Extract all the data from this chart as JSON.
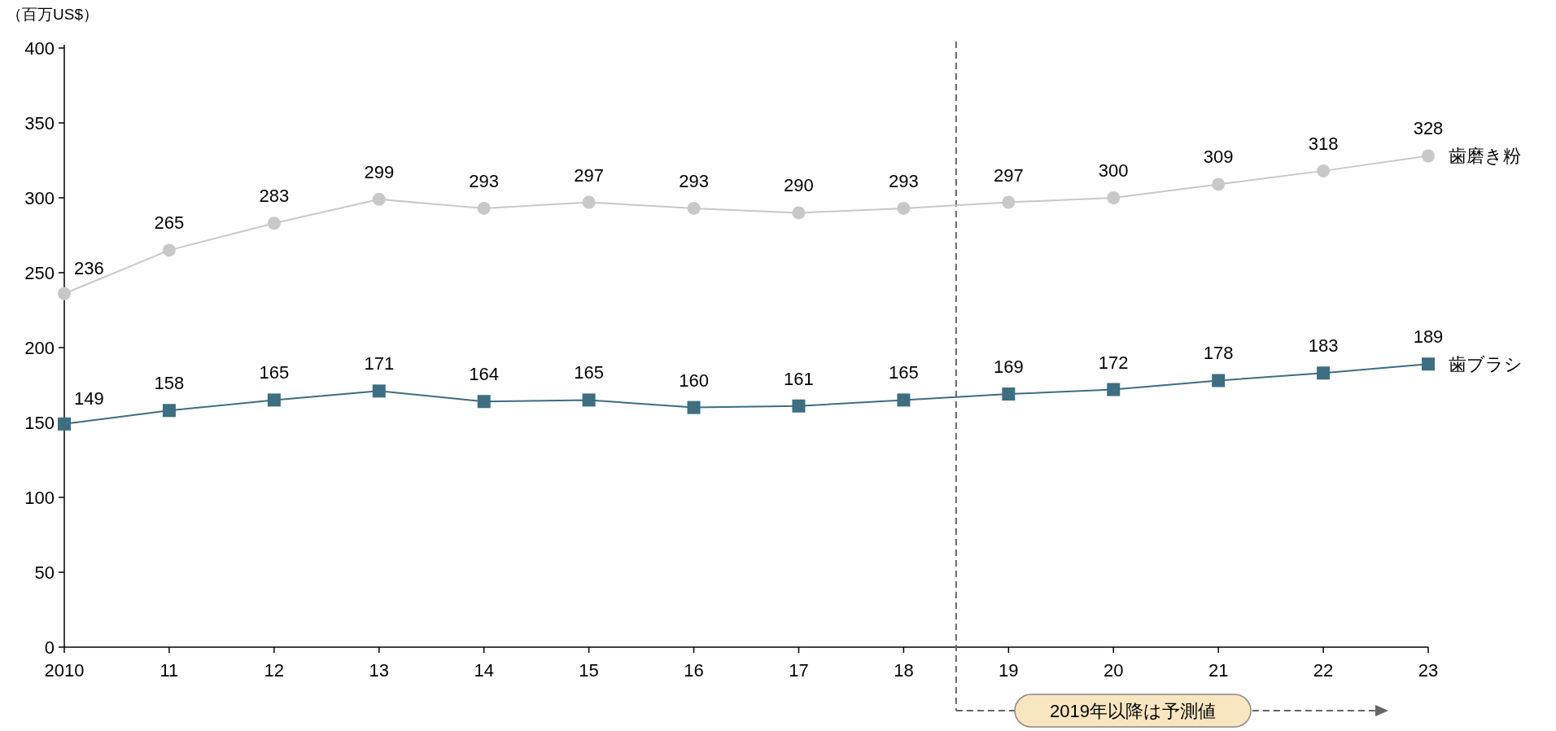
{
  "chart_data": {
    "type": "line",
    "ylabel": "（百万US$）",
    "x": [
      2010,
      2011,
      2012,
      2013,
      2014,
      2015,
      2016,
      2017,
      2018,
      2019,
      2020,
      2021,
      2022,
      2023
    ],
    "xlim": [
      2010,
      2023
    ],
    "xticks": [
      2010,
      {
        "value": 2011,
        "label": "11"
      },
      {
        "value": 2012,
        "label": "12"
      },
      {
        "value": 2013,
        "label": "13"
      },
      {
        "value": 2014,
        "label": "14"
      },
      {
        "value": 2015,
        "label": "15"
      },
      {
        "value": 2016,
        "label": "16"
      },
      {
        "value": 2017,
        "label": "17"
      },
      {
        "value": 2018,
        "label": "18"
      },
      {
        "value": 2019,
        "label": "19"
      },
      {
        "value": 2020,
        "label": "20"
      },
      {
        "value": 2021,
        "label": "21"
      },
      {
        "value": 2022,
        "label": "22"
      },
      {
        "value": 2023,
        "label": "23"
      }
    ],
    "ylim": [
      0,
      400
    ],
    "yticks": [
      0,
      50,
      100,
      150,
      200,
      250,
      300,
      350,
      400
    ],
    "series": [
      {
        "name": "歯磨き粉",
        "color": "#c8c8c8",
        "marker": "circle",
        "values": [
          236,
          265,
          283,
          299,
          293,
          297,
          293,
          290,
          293,
          297,
          300,
          309,
          318,
          328
        ]
      },
      {
        "name": "歯ブラシ",
        "color": "#3d6e82",
        "marker": "square",
        "values": [
          149,
          158,
          165,
          171,
          164,
          165,
          160,
          161,
          165,
          169,
          172,
          178,
          183,
          189
        ]
      }
    ],
    "data_labels": true,
    "legend": false,
    "grid": false,
    "ref_lines": [
      {
        "axis": "x",
        "value": 2018.5,
        "line_style": "dashed",
        "color": "#666666"
      }
    ],
    "annotations": [
      "2019年以降は予測値"
    ]
  }
}
